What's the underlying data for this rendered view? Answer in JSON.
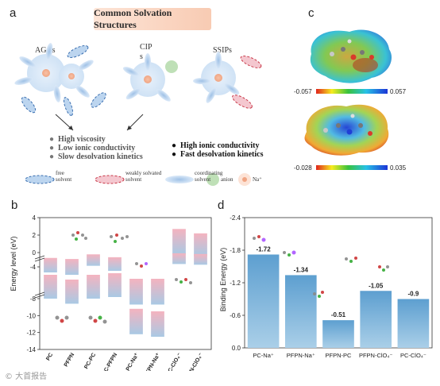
{
  "panels": {
    "a": "a",
    "b": "b",
    "c": "c",
    "d": "d"
  },
  "panel_a": {
    "title": "Common Solvation Structures",
    "groups": [
      "AGGs",
      "CIP\ns",
      "SSIPs"
    ],
    "bullets_left": [
      "High viscosity",
      "Low ionic conductivity",
      "Slow desolvation kinetics"
    ],
    "bullets_right": [
      "High ionic conductivity",
      "Fast desolvation kinetics"
    ],
    "legend": [
      {
        "label": "free\nsolvent"
      },
      {
        "label": "weakly solvated\nsolvent"
      },
      {
        "label": "coordinating\nsolvent"
      },
      {
        "label": "anion"
      },
      {
        "label": "Na⁺"
      }
    ]
  },
  "panel_c": {
    "scale1": {
      "min": "-0.057",
      "max": "0.057"
    },
    "scale2": {
      "min": "-0.028",
      "max": "0.035"
    }
  },
  "chart_data": [
    {
      "type": "bar",
      "panel": "b",
      "ylabel": "Energy level (eV)",
      "ylim": [
        -14,
        4
      ],
      "yticks": [
        "4",
        "2",
        "0",
        "-4",
        "-8",
        "-10",
        "-12",
        "-14"
      ],
      "categories": [
        "PC",
        "PFPN",
        "PC-PC",
        "PC-PFPN",
        "PC-Na⁺",
        "PFPN-Na⁺",
        "PC-ClO₄⁻",
        "PFPN-ClO₄⁻"
      ],
      "lumo": [
        -1.5,
        -1.8,
        -0.5,
        -1.3,
        -5.5,
        -5.5,
        2.7,
        2.2
      ],
      "homo": [
        -8.0,
        -8.6,
        -8.0,
        -7.8,
        -12.2,
        -12.5,
        -3.2,
        -3.4
      ]
    },
    {
      "type": "bar",
      "panel": "d",
      "ylabel": "Binding Energy (eV)",
      "ylim": [
        0,
        -2.4
      ],
      "yticks": [
        "-2.4",
        "-1.8",
        "-1.2",
        "-0.6",
        "0.0"
      ],
      "categories": [
        "PC-Na⁺",
        "PFPN-Na⁺",
        "PFPN-PC",
        "PFPN-ClO₄⁻",
        "PC-ClO₄⁻"
      ],
      "values": [
        -1.72,
        -1.34,
        -0.51,
        -1.05,
        -0.9
      ],
      "data_labels": [
        "-1.72",
        "-1.34",
        "-0.51",
        "-1.05",
        "-0.9"
      ]
    }
  ],
  "watermark": "© 大首报告",
  "colors": {
    "bar_blue": "#6fa8d2",
    "lumo_top": "#f4b6c0",
    "homo_bottom": "#9fc3df",
    "title_bg": "#f8cbb3"
  }
}
